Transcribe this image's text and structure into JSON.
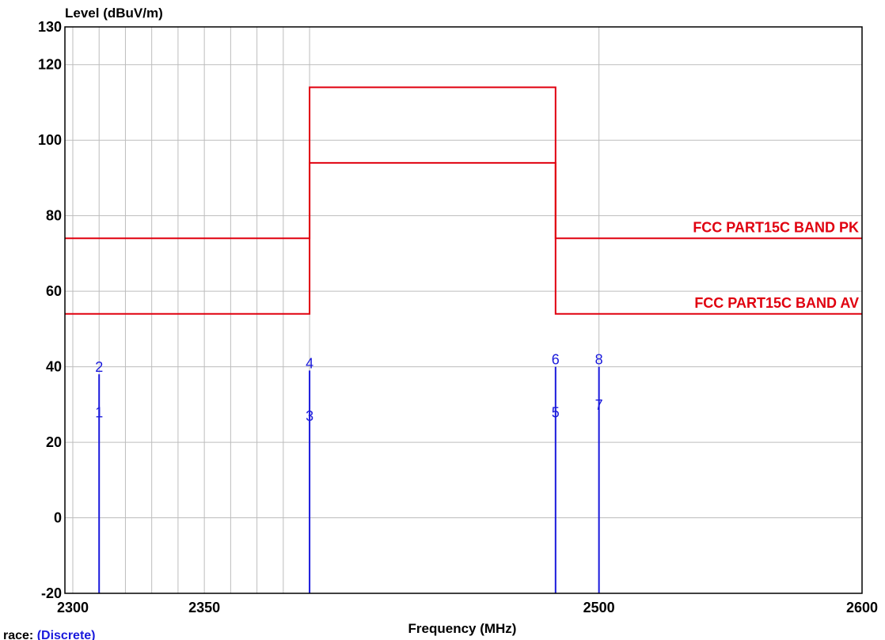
{
  "chart_data": {
    "type": "line",
    "ylabel": "Level (dBuV/m)",
    "xlabel": "Frequency (MHz)",
    "xlim": [
      2297,
      2600
    ],
    "ylim": [
      -20,
      130
    ],
    "y_ticks": [
      -20,
      0,
      20,
      40,
      60,
      80,
      100,
      120,
      130
    ],
    "x_tick_labels": [
      {
        "x": 2300,
        "label": "2300"
      },
      {
        "x": 2350,
        "label": "2350"
      },
      {
        "x": 2500,
        "label": "2500"
      },
      {
        "x": 2600,
        "label": "2600"
      }
    ],
    "x_minor_grid": [
      2300,
      2310,
      2320,
      2330,
      2340,
      2350,
      2360,
      2370,
      2380,
      2390
    ],
    "x_major_grid": [
      2500
    ],
    "grid": true,
    "colors": {
      "limit": "#e0000f",
      "marker": "#1a1adc",
      "grid": "#bdbdbd",
      "axis": "#000000"
    },
    "series": [
      {
        "name": "FCC PART15C  BAND PK",
        "x": [
          2297,
          2390,
          2390,
          2483.5,
          2483.5,
          2600
        ],
        "y": [
          74,
          74,
          114,
          114,
          74,
          74
        ]
      },
      {
        "name": "FCC PART15C  BAND AV",
        "x": [
          2297,
          2390,
          2390,
          2483.5,
          2483.5,
          2600
        ],
        "y": [
          54,
          54,
          94,
          94,
          54,
          54
        ]
      }
    ],
    "markers": [
      {
        "label": "1",
        "x": 2310,
        "y": 26
      },
      {
        "label": "2",
        "x": 2310,
        "y": 38
      },
      {
        "label": "3",
        "x": 2390,
        "y": 25
      },
      {
        "label": "4",
        "x": 2390,
        "y": 39
      },
      {
        "label": "5",
        "x": 2483.5,
        "y": 26
      },
      {
        "label": "6",
        "x": 2483.5,
        "y": 40
      },
      {
        "label": "7",
        "x": 2500,
        "y": 28
      },
      {
        "label": "8",
        "x": 2500,
        "y": 40
      }
    ],
    "trace_caption": {
      "prefix": "race:",
      "value": "(Discrete)"
    }
  }
}
